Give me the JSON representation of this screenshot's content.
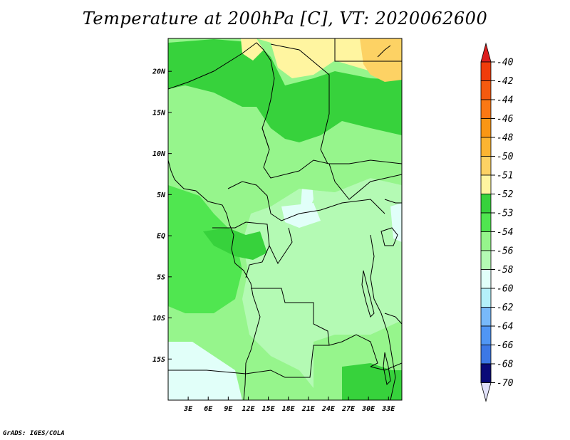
{
  "title": "Temperature at 200hPa [C], VT: 2020062600",
  "credit": "GrADS: IGES/COLA",
  "map": {
    "lon_range": [
      0,
      35
    ],
    "lat_range": [
      -20,
      24
    ],
    "lon_ticks": [
      {
        "value": 3,
        "label": "3E"
      },
      {
        "value": 6,
        "label": "6E"
      },
      {
        "value": 9,
        "label": "9E"
      },
      {
        "value": 12,
        "label": "12E"
      },
      {
        "value": 15,
        "label": "15E"
      },
      {
        "value": 18,
        "label": "18E"
      },
      {
        "value": 21,
        "label": "21E"
      },
      {
        "value": 24,
        "label": "24E"
      },
      {
        "value": 27,
        "label": "27E"
      },
      {
        "value": 30,
        "label": "30E"
      },
      {
        "value": 33,
        "label": "33E"
      }
    ],
    "lat_ticks": [
      {
        "value": 20,
        "label": "20N"
      },
      {
        "value": 15,
        "label": "15N"
      },
      {
        "value": 10,
        "label": "10N"
      },
      {
        "value": 5,
        "label": "5N"
      },
      {
        "value": 0,
        "label": "EQ"
      },
      {
        "value": -5,
        "label": "5S"
      },
      {
        "value": -10,
        "label": "10S"
      },
      {
        "value": -15,
        "label": "15S"
      }
    ]
  },
  "colorbar": {
    "levels": [
      {
        "label": "-40",
        "color": "#f03c0a"
      },
      {
        "label": "-42",
        "color": "#f55a0f"
      },
      {
        "label": "-44",
        "color": "#fa7814"
      },
      {
        "label": "-46",
        "color": "#fa9614"
      },
      {
        "label": "-48",
        "color": "#fcb432"
      },
      {
        "label": "-50",
        "color": "#fdd264"
      },
      {
        "label": "-51",
        "color": "#fff5a0"
      },
      {
        "label": "-52",
        "color": "#37d23c"
      },
      {
        "label": "-53",
        "color": "#50e650"
      },
      {
        "label": "-54",
        "color": "#96f58c"
      },
      {
        "label": "-56",
        "color": "#b4fab4"
      },
      {
        "label": "-58",
        "color": "#e1fff9"
      },
      {
        "label": "-60",
        "color": "#b4f0fa"
      },
      {
        "label": "-62",
        "color": "#78b9fa"
      },
      {
        "label": "-64",
        "color": "#5096f5"
      },
      {
        "label": "-66",
        "color": "#3c78e6"
      },
      {
        "label": "-68",
        "color": "#1e3cc8"
      },
      {
        "label": "-70",
        "color": "#1e64d2"
      }
    ],
    "top_color": "#dc1e1e",
    "bottom_color": "#0a0a78",
    "under_color": "#e1e1fa"
  }
}
